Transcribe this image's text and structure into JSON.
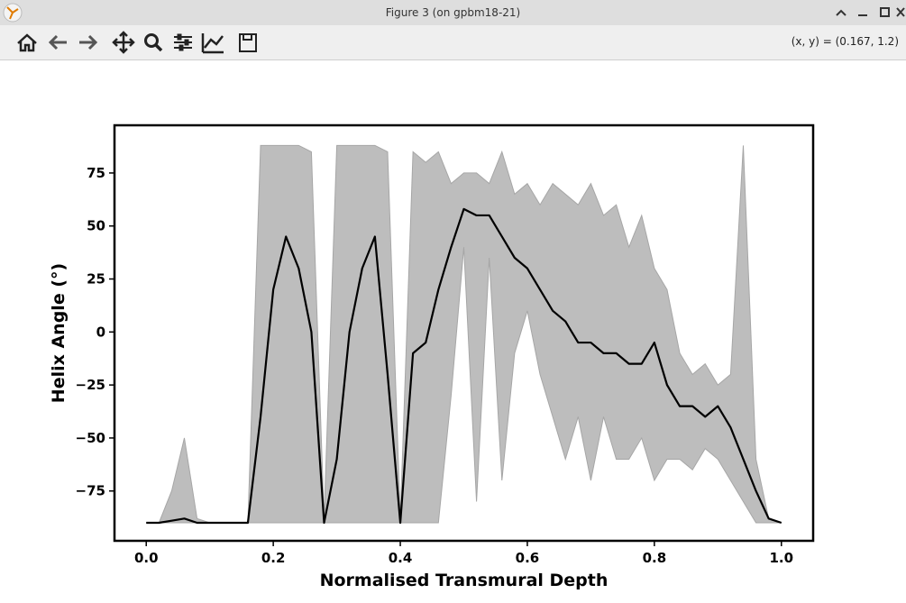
{
  "window": {
    "title": "Figure 3 (on gpbm18-21)",
    "coords": "(x, y) = (0.167, 1.2)"
  },
  "chart_data": {
    "type": "line",
    "xlabel": "Normalised Transmural Depth",
    "ylabel": "Helix Angle (°)",
    "x": [
      0,
      0.02,
      0.04,
      0.06,
      0.08,
      0.1,
      0.12,
      0.14,
      0.16,
      0.18,
      0.2,
      0.22,
      0.24,
      0.26,
      0.28,
      0.3,
      0.32,
      0.34,
      0.36,
      0.38,
      0.4,
      0.42,
      0.44,
      0.46,
      0.48,
      0.5,
      0.52,
      0.54,
      0.56,
      0.58,
      0.6,
      0.62,
      0.64,
      0.66,
      0.68,
      0.7,
      0.72,
      0.74,
      0.76,
      0.78,
      0.8,
      0.82,
      0.84,
      0.86,
      0.88,
      0.9,
      0.92,
      0.94,
      0.96,
      0.98,
      1.0
    ],
    "series": [
      {
        "color": "#000000",
        "values": [
          -90,
          -90,
          -89,
          -88,
          -90,
          -90,
          -90,
          -90,
          -90,
          -40,
          20,
          45,
          30,
          0,
          -90,
          -60,
          0,
          30,
          45,
          -20,
          -90,
          -10,
          -5,
          20,
          40,
          58,
          55,
          55,
          45,
          35,
          30,
          20,
          10,
          5,
          -5,
          -5,
          -10,
          -10,
          -15,
          -15,
          -5,
          -25,
          -35,
          -35,
          -40,
          -35,
          -45,
          -60,
          -75,
          -88,
          -90
        ]
      }
    ],
    "band": {
      "color": "#bdbdbd",
      "edge": "#a6a6a6",
      "upper": [
        -90,
        -90,
        -75,
        -50,
        -88,
        -90,
        -90,
        -90,
        -90,
        88,
        88,
        88,
        88,
        85,
        -88,
        88,
        88,
        88,
        88,
        85,
        -88,
        85,
        80,
        85,
        70,
        75,
        75,
        70,
        85,
        65,
        70,
        60,
        70,
        65,
        60,
        70,
        55,
        60,
        40,
        55,
        30,
        20,
        -10,
        -20,
        -15,
        -25,
        -20,
        88,
        -60,
        -88,
        -90
      ],
      "lower": [
        -90,
        -90,
        -90,
        -90,
        -90,
        -90,
        -90,
        -90,
        -90,
        -90,
        -90,
        -90,
        -90,
        -90,
        -90,
        -90,
        -90,
        -90,
        -90,
        -90,
        -90,
        -90,
        -90,
        -90,
        -30,
        40,
        -80,
        35,
        -70,
        -10,
        10,
        -20,
        -40,
        -60,
        -40,
        -70,
        -40,
        -60,
        -60,
        -50,
        -70,
        -60,
        -60,
        -65,
        -55,
        -60,
        -70,
        -80,
        -90,
        -90,
        -90
      ]
    },
    "xlim": [
      -0.05,
      1.05
    ],
    "ylim": [
      -98.5,
      97.5
    ],
    "xticks": [
      {
        "value": 0,
        "label": "0.0"
      },
      0.2,
      0.4,
      0.6,
      0.8,
      {
        "value": 1,
        "label": "1.0"
      }
    ],
    "yticks": [
      {
        "value": -75,
        "label": "−75"
      },
      {
        "value": -50,
        "label": "−50"
      },
      {
        "value": -25,
        "label": "−25"
      },
      0,
      25,
      50,
      75
    ]
  }
}
